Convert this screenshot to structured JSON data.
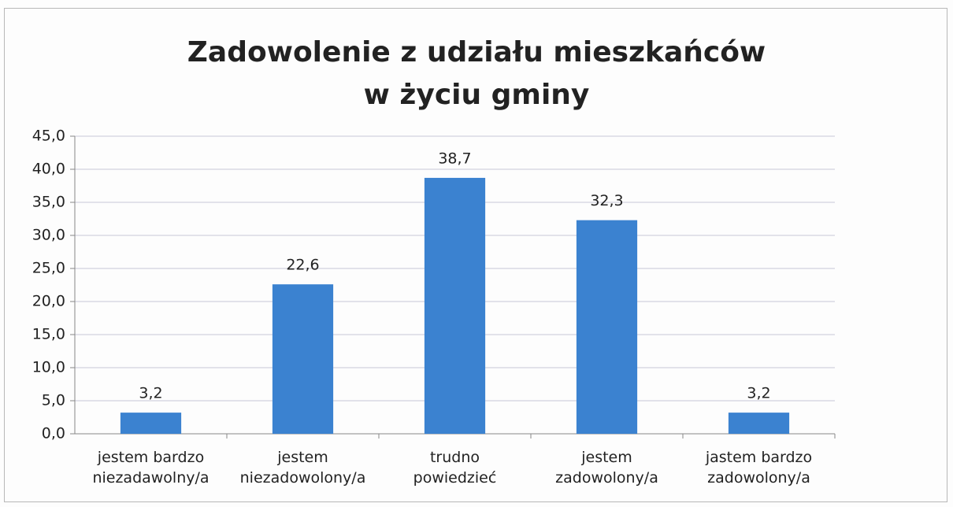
{
  "chart_data": {
    "type": "bar",
    "title": "Zadowolenie z udziału mieszkańców\nw życiu gminy",
    "categories": [
      "jestem bardzo\nniezadawolny/a",
      "jestem\nniezadowolony/a",
      "trudno\npowiedzieć",
      "jestem\nzadowolony/a",
      "jastem bardzo\nzadowolony/a"
    ],
    "values": [
      3.2,
      22.6,
      38.7,
      32.3,
      3.2
    ],
    "value_labels": [
      "3,2",
      "22,6",
      "38,7",
      "32,3",
      "3,2"
    ],
    "color": "#3b82d0",
    "ylim": [
      0,
      45
    ],
    "yticks": [
      {
        "value": 0,
        "label": "0,0"
      },
      {
        "value": 5,
        "label": "5,0"
      },
      {
        "value": 10,
        "label": "10,0"
      },
      {
        "value": 15,
        "label": "15,0"
      },
      {
        "value": 20,
        "label": "20,0"
      },
      {
        "value": 25,
        "label": "25,0"
      },
      {
        "value": 30,
        "label": "30,0"
      },
      {
        "value": 35,
        "label": "35,0"
      },
      {
        "value": 40,
        "label": "40,0"
      },
      {
        "value": 45,
        "label": "45,0"
      }
    ],
    "grid": true
  }
}
